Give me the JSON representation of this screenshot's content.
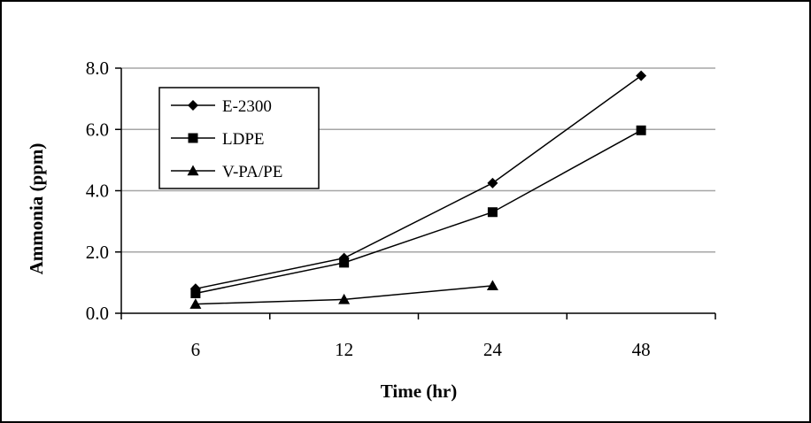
{
  "chart_data": {
    "type": "line",
    "xlabel": "Time (hr)",
    "ylabel": "Ammonia (ppm)",
    "categories": [
      "6",
      "12",
      "24",
      "48"
    ],
    "ylim": [
      0,
      8
    ],
    "yticks": [
      "0.0",
      "2.0",
      "4.0",
      "6.0",
      "8.0"
    ],
    "grid": "horizontal",
    "legend_position": "top-left",
    "series": [
      {
        "name": "E-2300",
        "marker": "diamond",
        "values": [
          0.8,
          1.8,
          4.25,
          7.75
        ]
      },
      {
        "name": "LDPE",
        "marker": "square",
        "values": [
          0.65,
          1.65,
          3.3,
          5.97
        ]
      },
      {
        "name": "V-PA/PE",
        "marker": "triangle",
        "values": [
          0.3,
          0.45,
          0.9,
          null
        ]
      }
    ],
    "colors": {
      "line": "#000000",
      "grid": "#a6a6a6",
      "background": "#ffffff"
    }
  }
}
